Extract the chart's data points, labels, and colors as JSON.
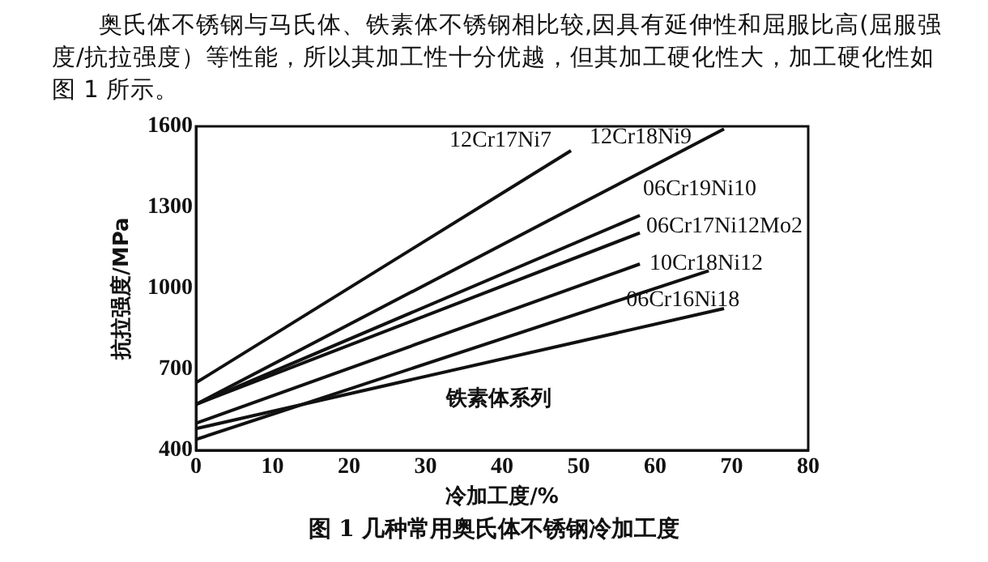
{
  "chart_data": {
    "type": "line",
    "title": "图 1 几种常用奥氏体不锈钢冷加工度",
    "annotations": [
      "奥氏体不锈钢与马氏体、铁素体不锈钢相比较,因具有延伸性和屈服比高(屈服强度/抗拉强度）等性能，所以其加工性十分优越，但其加工硬化性大，加工硬化性如图 1 所示。"
    ],
    "xlabel": "冷加工度/%",
    "ylabel": "抗拉强度/MPa",
    "xlim": [
      0,
      80
    ],
    "xticks": [
      0,
      10,
      20,
      30,
      40,
      50,
      60,
      70,
      80
    ],
    "ylim": [
      400,
      1600
    ],
    "yticks": [
      400,
      700,
      1000,
      1300,
      1600
    ],
    "grid": false,
    "legend": false,
    "marker": "none",
    "line_style": "solid",
    "series": [
      {
        "name": "12Cr17Ni7",
        "color": "#111111",
        "x": [
          0,
          49
        ],
        "values": [
          650,
          1510
        ]
      },
      {
        "name": "12Cr18Ni9",
        "color": "#111111",
        "x": [
          0,
          69
        ],
        "values": [
          570,
          1590
        ]
      },
      {
        "name": "06Cr19Ni10",
        "color": "#111111",
        "x": [
          0,
          58
        ],
        "values": [
          570,
          1270
        ]
      },
      {
        "name": "06Cr17Ni12Mo2",
        "color": "#111111",
        "x": [
          0,
          58
        ],
        "values": [
          570,
          1205
        ]
      },
      {
        "name": "10Cr18Ni12",
        "color": "#111111",
        "x": [
          0,
          58
        ],
        "values": [
          500,
          1090
        ]
      },
      {
        "name": "06Cr16Ni18",
        "color": "#111111",
        "x": [
          0,
          67
        ],
        "values": [
          440,
          1065
        ]
      },
      {
        "name": "铁素体系列",
        "color": "#111111",
        "x": [
          0,
          69
        ],
        "values": [
          480,
          925
        ]
      }
    ]
  }
}
